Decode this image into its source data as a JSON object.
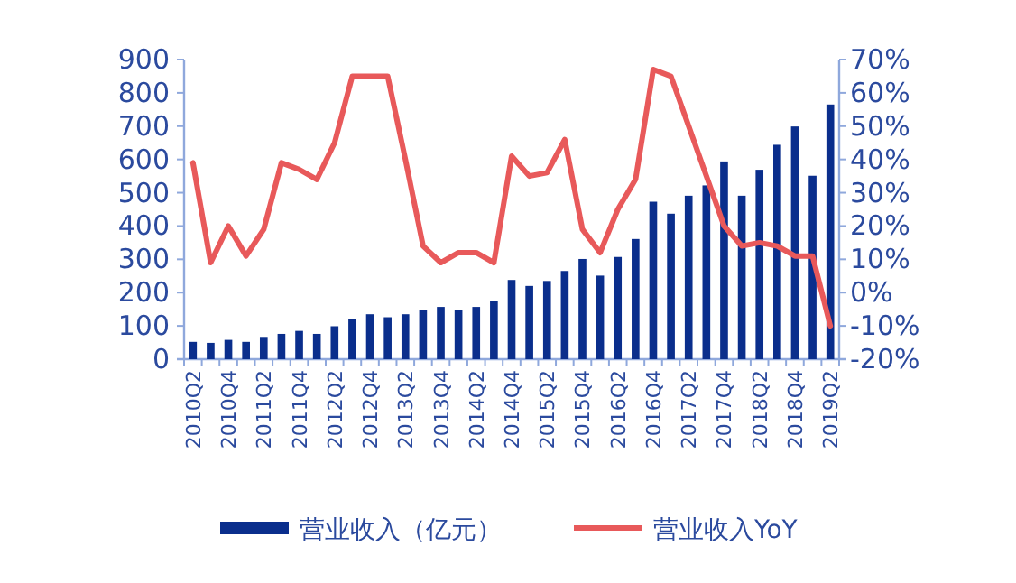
{
  "chart_data": {
    "type": "bar",
    "categories": [
      "2010Q2",
      null,
      "2010Q4",
      null,
      "2011Q2",
      null,
      "2011Q4",
      null,
      "2012Q2",
      null,
      "2012Q4",
      null,
      "2013Q2",
      null,
      "2013Q4",
      null,
      "2014Q2",
      null,
      "2014Q4",
      null,
      "2015Q2",
      null,
      "2015Q4",
      null,
      "2016Q2",
      null,
      "2016Q4",
      null,
      "2017Q2",
      null,
      "2017Q4",
      null,
      "2018Q2",
      null,
      "2018Q4",
      null,
      "2019Q2"
    ],
    "series": [
      {
        "name": "营业收入（亿元）",
        "color": "#0a2e8c",
        "values": [
          52,
          49,
          58,
          52,
          67,
          76,
          85,
          76,
          99,
          121,
          135,
          126,
          135,
          148,
          157,
          148,
          157,
          175,
          238,
          220,
          235,
          265,
          301,
          251,
          307,
          361,
          473,
          437,
          491,
          522,
          594,
          491,
          569,
          644,
          699,
          551,
          765
        ]
      },
      {
        "name": "营业收入YoY",
        "type": "line",
        "axis": "y2",
        "color": "#e8595a",
        "values": [
          39,
          9,
          20,
          11,
          19,
          39,
          37,
          34,
          45,
          65,
          65,
          65,
          40,
          14,
          9,
          12,
          12,
          9,
          41,
          35,
          36,
          46,
          19,
          12,
          25,
          34,
          67,
          65,
          50,
          35,
          20,
          14,
          15,
          14,
          11,
          11,
          -10
        ]
      }
    ],
    "ylim": [
      0,
      900
    ],
    "yticks": [
      0,
      100,
      200,
      300,
      400,
      500,
      600,
      700,
      800,
      900
    ],
    "y2lim": [
      -20,
      70
    ],
    "y2ticks": [
      {
        "value": -20,
        "label": "-20%"
      },
      {
        "value": -10,
        "label": "-10%"
      },
      {
        "value": 0,
        "label": "0%"
      },
      {
        "value": 10,
        "label": "10%"
      },
      {
        "value": 20,
        "label": "20%"
      },
      {
        "value": 30,
        "label": "30%"
      },
      {
        "value": 40,
        "label": "40%"
      },
      {
        "value": 50,
        "label": "50%"
      },
      {
        "value": 60,
        "label": "60%"
      },
      {
        "value": 70,
        "label": "70%"
      }
    ],
    "grid": false,
    "legend": "bottom"
  }
}
